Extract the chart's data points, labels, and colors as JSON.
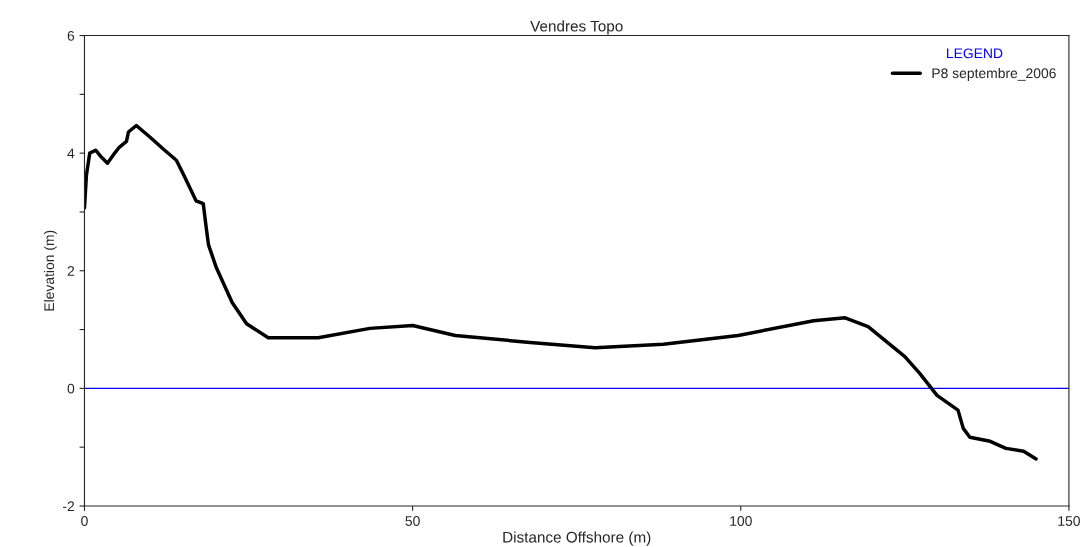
{
  "chart_data": {
    "type": "line",
    "title": "Vendres Topo",
    "xlabel": "Distance Offshore (m)",
    "ylabel": "Elevation (m)",
    "legend_title": "LEGEND",
    "legend": "top right",
    "grid": false,
    "marker": "none",
    "line_style": "solid",
    "xlim": [
      0,
      150
    ],
    "ylim": [
      -2,
      6
    ],
    "xticks": [
      0,
      50,
      100,
      150
    ],
    "yticks": [
      -2,
      {
        "value": -1,
        "label": null
      },
      0,
      {
        "value": 1,
        "label": null
      },
      2,
      {
        "value": 3,
        "label": null
      },
      4,
      {
        "value": 5,
        "label": null
      },
      6
    ],
    "ref_lines": [
      {
        "axis": "y",
        "value": 0,
        "color": "#0000ff"
      }
    ],
    "series": [
      {
        "name": "P8 septembre_2006",
        "color": "#000000",
        "x": [
          0,
          0.3,
          0.8,
          1.7,
          2.6,
          3.5,
          4.4,
          5.3,
          6.4,
          6.7,
          7.9,
          10,
          12,
          14,
          15.2,
          17,
          18.1,
          18.6,
          18.9,
          20.1,
          22.5,
          24.7,
          28,
          35.6,
          43.5,
          50,
          56.5,
          67.9,
          77.8,
          88.2,
          99.6,
          111.1,
          115.9,
          119.4,
          125,
          127.3,
          129.9,
          133.1,
          133.9,
          134.9,
          138,
          140.4,
          143.1,
          145
        ],
        "values": [
          3.07,
          3.63,
          4.0,
          4.05,
          3.93,
          3.83,
          3.97,
          4.1,
          4.2,
          4.36,
          4.47,
          4.27,
          4.07,
          3.88,
          3.61,
          3.19,
          3.14,
          2.69,
          2.44,
          2.05,
          1.46,
          1.1,
          0.86,
          0.86,
          1.02,
          1.07,
          0.9,
          0.78,
          0.69,
          0.75,
          0.9,
          1.15,
          1.2,
          1.05,
          0.54,
          0.25,
          -0.12,
          -0.37,
          -0.68,
          -0.83,
          -0.9,
          -1.02,
          -1.07,
          -1.2
        ]
      }
    ]
  }
}
